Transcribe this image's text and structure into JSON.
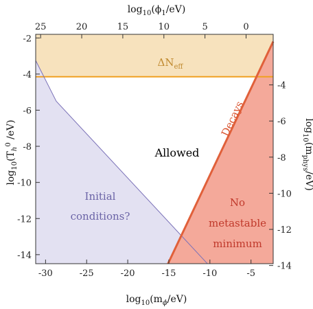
{
  "chart_data": {
    "type": "area",
    "xlabel": {
      "base": "log",
      "sub": "10",
      "open": "(m",
      "var_sub": "ϕ",
      "close": "/eV)"
    },
    "ylabel": {
      "base": "log",
      "sub": "10",
      "open": "(T",
      "var_sub": "h",
      "var_sup": "0",
      "close": " /eV)"
    },
    "top_xlabel": {
      "base": "log",
      "sub": "10",
      "open": "(ϕ",
      "var_sub": "1",
      "close": "/eV)"
    },
    "right_ylabel": {
      "base": "log",
      "sub": "10",
      "open": "(m",
      "var_sub": "phys",
      "close": "/eV)"
    },
    "xlim": [
      -31.2,
      -2.3
    ],
    "ylim": [
      -14.5,
      -1.8
    ],
    "x_ticks": [
      "-30",
      "-25",
      "-20",
      "-15",
      "-10",
      "-5"
    ],
    "x_tick_values": [
      -30,
      -25,
      -20,
      -15,
      -10,
      -5
    ],
    "y_ticks": [
      "-2",
      "-4",
      "-6",
      "-8",
      "-10",
      "-12",
      "-14"
    ],
    "y_tick_values": [
      -2,
      -4,
      -6,
      -8,
      -10,
      -12,
      -14
    ],
    "top_ticks": [
      "25",
      "20",
      "15",
      "10",
      "5",
      "0"
    ],
    "top_tick_x": [
      -30.6,
      -25.6,
      -20.6,
      -15.6,
      -10.6,
      -5.6
    ],
    "right_ticks": [
      "-4",
      "-6",
      "-8",
      "-10",
      "-12",
      "-14"
    ],
    "right_tick_y": [
      -4.6,
      -6.6,
      -8.6,
      -10.6,
      -12.6,
      -14.6
    ],
    "regions": [
      {
        "name": "ΔN_eff",
        "label_main": "ΔN",
        "label_sub": "eff",
        "color": "#f7e2bd",
        "line_color": "#f0a020",
        "boundary_y": -4.15
      },
      {
        "name": "Initial conditions?",
        "lines": [
          "Initial",
          "conditions?"
        ],
        "color": "#e3e1f2",
        "line_color": "#7b72b8",
        "boundary": [
          [
            -31.2,
            -3.25
          ],
          [
            -28.7,
            -5.5
          ],
          [
            -10.3,
            -14.5
          ]
        ]
      },
      {
        "name": "No metastable minimum",
        "lines": [
          "No",
          "metastable",
          "minimum"
        ],
        "color": "#f4a99a",
        "text_color": "#c0392b"
      },
      {
        "name": "Decays",
        "label": "Decays",
        "line_color": "#e0603a",
        "boundary": [
          [
            -15.1,
            -14.5
          ],
          [
            -2.3,
            -2.2
          ]
        ]
      },
      {
        "name": "Allowed",
        "label": "Allowed",
        "text_color": "#000000"
      }
    ]
  }
}
